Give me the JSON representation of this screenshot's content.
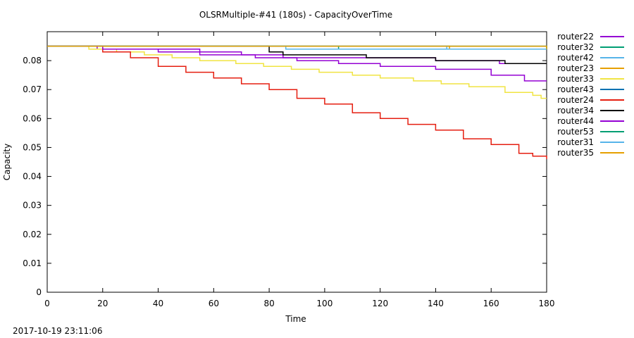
{
  "footer": {
    "timestamp": "2017-10-19 23:11:06"
  },
  "chart_data": {
    "type": "line",
    "title": "OLSRMultiple-#41 (180s) - CapacityOverTime",
    "xlabel": "Time",
    "ylabel": "Capacity",
    "xlim": [
      0,
      180
    ],
    "ylim": [
      0,
      0.09
    ],
    "xticks": [
      0,
      20,
      40,
      60,
      80,
      100,
      120,
      140,
      160,
      180
    ],
    "yticks": [
      0,
      0.01,
      0.02,
      0.03,
      0.04,
      0.05,
      0.06,
      0.07,
      0.08
    ],
    "ytick_labels": [
      "0",
      "0.01",
      "0.02",
      "0.03",
      "0.04",
      "0.05",
      "0.06",
      "0.07",
      "0.08"
    ],
    "grid": false,
    "legend_position": "right",
    "series": [
      {
        "name": "router22",
        "color": "#9400d3",
        "x": [
          0,
          18,
          55,
          70,
          85,
          95,
          110,
          125,
          140,
          155,
          163,
          180
        ],
        "y": [
          0.085,
          0.084,
          0.083,
          0.082,
          0.081,
          0.081,
          0.081,
          0.081,
          0.08,
          0.08,
          0.079,
          0.079
        ]
      },
      {
        "name": "router32",
        "color": "#009e73",
        "x": [
          0,
          85,
          105,
          145,
          180
        ],
        "y": [
          0.085,
          0.085,
          0.084,
          0.084,
          0.084
        ]
      },
      {
        "name": "router42",
        "color": "#56b4e9",
        "x": [
          0,
          83,
          86,
          146,
          180
        ],
        "y": [
          0.085,
          0.085,
          0.084,
          0.084,
          0.084
        ]
      },
      {
        "name": "router23",
        "color": "#e69f00",
        "x": [
          0,
          103,
          145,
          180
        ],
        "y": [
          0.085,
          0.085,
          0.084,
          0.084
        ]
      },
      {
        "name": "router33",
        "color": "#f0e442",
        "x": [
          0,
          15,
          25,
          35,
          45,
          55,
          68,
          78,
          88,
          98,
          110,
          120,
          132,
          142,
          152,
          165,
          175,
          178,
          180
        ],
        "y": [
          0.085,
          0.084,
          0.083,
          0.082,
          0.081,
          0.08,
          0.079,
          0.078,
          0.077,
          0.076,
          0.075,
          0.074,
          0.073,
          0.072,
          0.071,
          0.069,
          0.068,
          0.067,
          0.067
        ]
      },
      {
        "name": "router43",
        "color": "#0072b2",
        "x": [
          0,
          100,
          180
        ],
        "y": [
          0.085,
          0.085,
          0.084
        ]
      },
      {
        "name": "router24",
        "color": "#e51e10",
        "x": [
          0,
          10,
          20,
          30,
          40,
          50,
          60,
          70,
          80,
          90,
          100,
          110,
          120,
          130,
          140,
          150,
          160,
          170,
          175,
          180
        ],
        "y": [
          0.085,
          0.085,
          0.083,
          0.081,
          0.078,
          0.076,
          0.074,
          0.072,
          0.07,
          0.067,
          0.065,
          0.062,
          0.06,
          0.058,
          0.056,
          0.053,
          0.051,
          0.048,
          0.047,
          0.046
        ]
      },
      {
        "name": "router34",
        "color": "#000000",
        "x": [
          0,
          80,
          85,
          110,
          115,
          135,
          140,
          160,
          165,
          180
        ],
        "y": [
          0.085,
          0.083,
          0.082,
          0.082,
          0.081,
          0.081,
          0.08,
          0.08,
          0.079,
          0.079
        ]
      },
      {
        "name": "router44",
        "color": "#9400d3",
        "x": [
          0,
          20,
          40,
          55,
          75,
          90,
          105,
          120,
          140,
          160,
          172,
          180
        ],
        "y": [
          0.085,
          0.084,
          0.083,
          0.082,
          0.081,
          0.08,
          0.079,
          0.078,
          0.077,
          0.075,
          0.073,
          0.073
        ]
      },
      {
        "name": "router53",
        "color": "#009e73",
        "x": [
          0,
          100,
          180
        ],
        "y": [
          0.085,
          0.085,
          0.084
        ]
      },
      {
        "name": "router31",
        "color": "#56b4e9",
        "x": [
          0,
          140,
          144,
          180
        ],
        "y": [
          0.085,
          0.085,
          0.084,
          0.084
        ]
      },
      {
        "name": "router35",
        "color": "#e69f00",
        "x": [
          0,
          180
        ],
        "y": [
          0.085,
          0.084
        ]
      }
    ]
  }
}
